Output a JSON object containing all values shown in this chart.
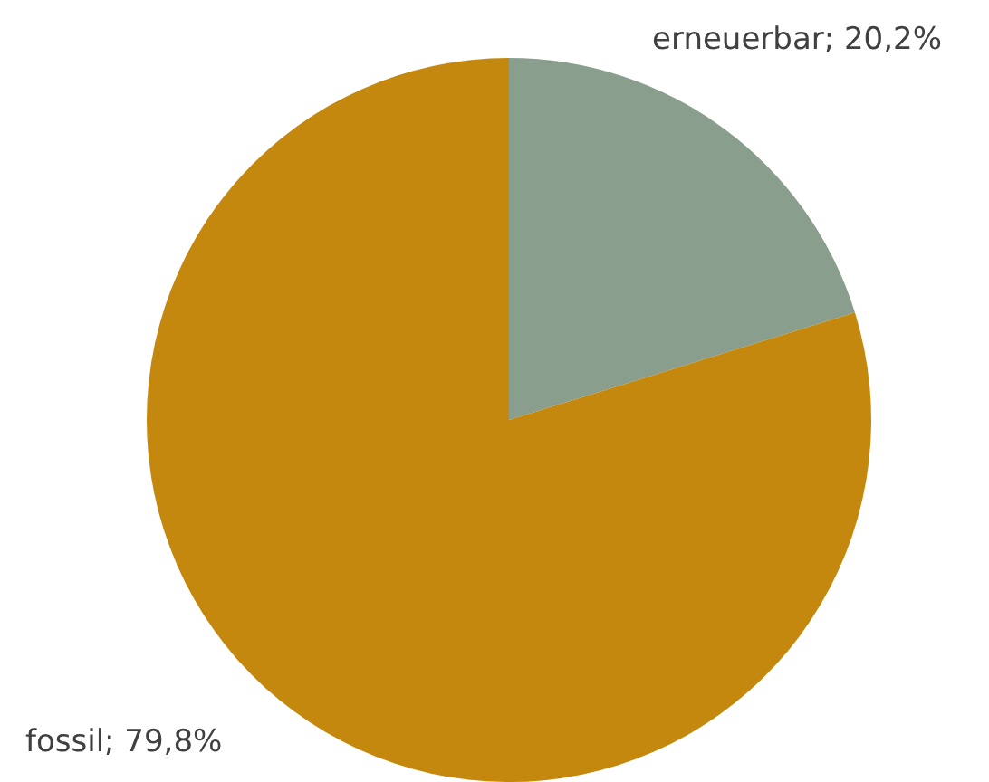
{
  "chart_data": {
    "type": "pie",
    "categories": [
      "erneuerbar",
      "fossil"
    ],
    "values": [
      20.2,
      79.8
    ],
    "colors": [
      "#8a9e8d",
      "#c4880e"
    ],
    "value_labels": [
      "20,2%",
      "79,8%"
    ],
    "legend": false
  }
}
